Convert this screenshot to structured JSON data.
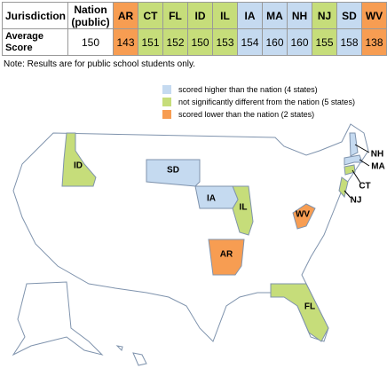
{
  "table": {
    "headers": [
      "Jurisdiction",
      "Nation (public)"
    ],
    "row_label": "Average Score",
    "nation_score": 150,
    "states": [
      {
        "code": "AR",
        "score": 143,
        "color": "#f79d52"
      },
      {
        "code": "CT",
        "score": 151,
        "color": "#c6dd7a"
      },
      {
        "code": "FL",
        "score": 152,
        "color": "#c6dd7a"
      },
      {
        "code": "ID",
        "score": 150,
        "color": "#c6dd7a"
      },
      {
        "code": "IL",
        "score": 153,
        "color": "#c6dd7a"
      },
      {
        "code": "IA",
        "score": 154,
        "color": "#c5daf0"
      },
      {
        "code": "MA",
        "score": 160,
        "color": "#c5daf0"
      },
      {
        "code": "NH",
        "score": 160,
        "color": "#c5daf0"
      },
      {
        "code": "NJ",
        "score": 155,
        "color": "#c6dd7a"
      },
      {
        "code": "SD",
        "score": 158,
        "color": "#c5daf0"
      },
      {
        "code": "WV",
        "score": 138,
        "color": "#f79d52"
      }
    ]
  },
  "note": "Note: Results are for public school students only.",
  "legend": [
    {
      "label": "scored higher than the nation (4 states)",
      "color": "#c5daf0"
    },
    {
      "label": "not significantly different from the nation (5 states)",
      "color": "#c6dd7a"
    },
    {
      "label": "scored lower than the nation (2 states)",
      "color": "#f79d52"
    }
  ]
}
